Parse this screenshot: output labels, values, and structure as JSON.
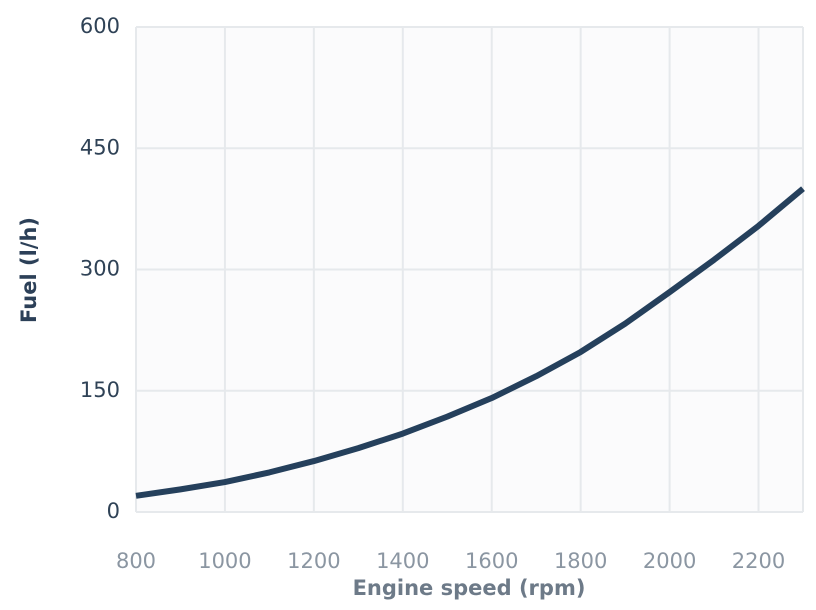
{
  "chart_data": {
    "type": "line",
    "x_label": "Engine speed (rpm)",
    "y_label": "Fuel (l/h)",
    "x": [
      800,
      900,
      1000,
      1100,
      1200,
      1300,
      1400,
      1500,
      1600,
      1700,
      1800,
      1900,
      2000,
      2100,
      2200,
      2300
    ],
    "series": [
      {
        "name": "Fuel",
        "color": "#25405c",
        "values": [
          20,
          28,
          37,
          49,
          63,
          79,
          97,
          118,
          141,
          168,
          198,
          233,
          272,
          312,
          354,
          400
        ]
      }
    ],
    "xlim": [
      800,
      2300
    ],
    "xticks": [
      800,
      1000,
      1200,
      1400,
      1600,
      1800,
      2000,
      2200
    ],
    "ylim": [
      0,
      600
    ],
    "yticks": [
      0,
      150,
      300,
      450,
      600
    ],
    "grid": true
  }
}
